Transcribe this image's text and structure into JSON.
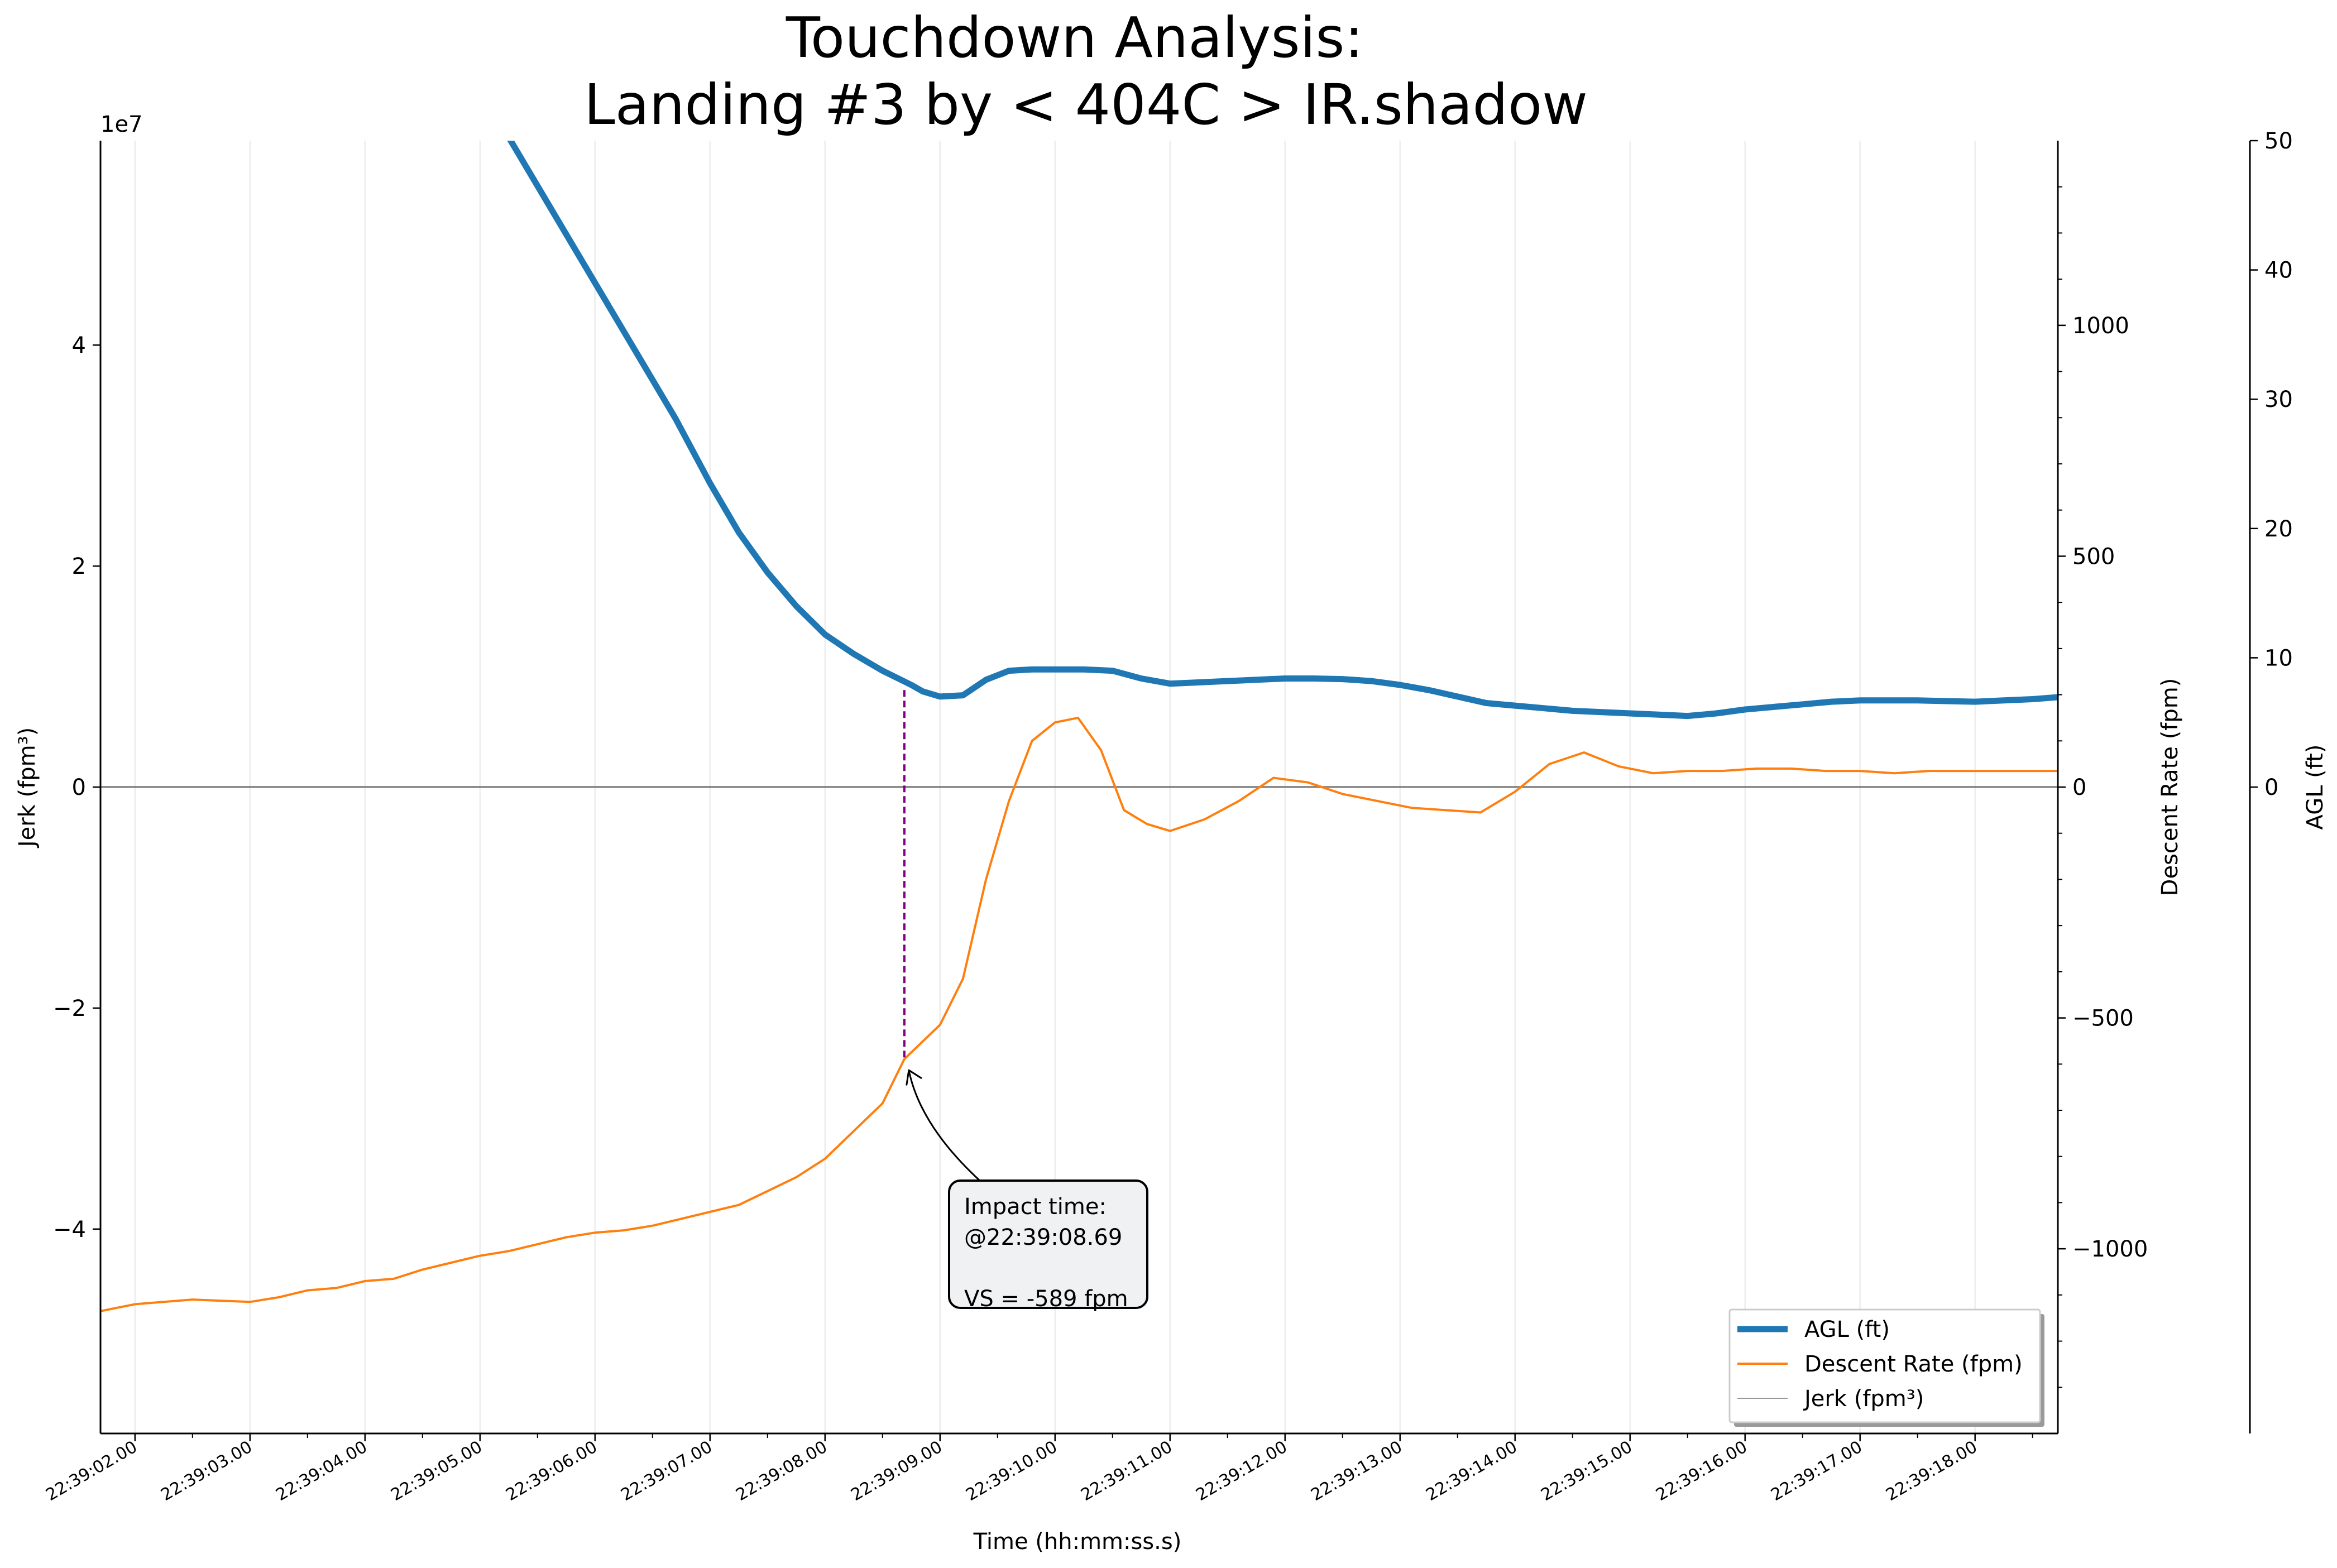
{
  "chart_data": {
    "type": "line",
    "title": [
      "Touchdown Analysis:",
      "Landing #3 by < 404C > IR.shadow"
    ],
    "xlabel": "Time (hh:mm:ss.s)",
    "x_ticks": [
      "22:39:02.00",
      "22:39:03.00",
      "22:39:04.00",
      "22:39:05.00",
      "22:39:06.00",
      "22:39:07.00",
      "22:39:08.00",
      "22:39:09.00",
      "22:39:10.00",
      "22:39:11.00",
      "22:39:12.00",
      "22:39:13.00",
      "22:39:14.00",
      "22:39:15.00",
      "22:39:16.00",
      "22:39:17.00",
      "22:39:18.00"
    ],
    "xlim": [
      1.7,
      18.72
    ],
    "axes": {
      "jerk": {
        "label": "Jerk (fpm³)",
        "offset_label": "1e7",
        "ylim": [
          -58500000,
          58500000
        ],
        "ticks": [
          -40000000,
          -20000000,
          0,
          20000000,
          40000000
        ],
        "tick_labels": [
          "−4",
          "−2",
          "0",
          "2",
          "4"
        ]
      },
      "descent": {
        "label": "Descent Rate (fpm)",
        "ylim": [
          -1400,
          1400
        ],
        "ticks": [
          -1000,
          -500,
          0,
          500,
          1000
        ],
        "tick_labels": [
          "−1000",
          "−500",
          "0",
          "500",
          "1000"
        ]
      },
      "agl": {
        "label": "AGL (ft)",
        "ylim": [
          -50,
          50
        ],
        "ticks": [
          0,
          10,
          20,
          30,
          40,
          50
        ],
        "tick_labels": [
          "0",
          "10",
          "20",
          "30",
          "40",
          "50"
        ]
      }
    },
    "series": [
      {
        "name": "AGL (ft)",
        "axis": "agl",
        "color": "#1f77b4",
        "x": [
          5.2,
          5.5,
          5.8,
          6.1,
          6.4,
          6.7,
          7.0,
          7.25,
          7.5,
          7.75,
          8.0,
          8.25,
          8.5,
          8.75,
          8.85,
          9.0,
          9.2,
          9.4,
          9.6,
          9.8,
          10.0,
          10.25,
          10.5,
          10.75,
          11.0,
          11.5,
          12.0,
          12.25,
          12.5,
          12.75,
          13.0,
          13.25,
          13.5,
          13.75,
          14.0,
          14.25,
          14.5,
          15.0,
          15.25,
          15.5,
          15.75,
          16.0,
          16.25,
          16.5,
          16.75,
          17.0,
          17.25,
          17.5,
          17.75,
          18.0,
          18.25,
          18.5,
          18.72
        ],
        "y": [
          51,
          46.5,
          42,
          37.5,
          33,
          28.5,
          23.5,
          19.7,
          16.6,
          14,
          11.8,
          10.3,
          9.0,
          7.9,
          7.4,
          7.0,
          7.1,
          8.3,
          9.0,
          9.1,
          9.1,
          9.1,
          9.0,
          8.4,
          8.0,
          8.2,
          8.4,
          8.4,
          8.35,
          8.2,
          7.9,
          7.5,
          7.0,
          6.5,
          6.3,
          6.1,
          5.9,
          5.7,
          5.6,
          5.5,
          5.7,
          6.0,
          6.2,
          6.4,
          6.6,
          6.7,
          6.7,
          6.7,
          6.65,
          6.6,
          6.7,
          6.8,
          6.95
        ]
      },
      {
        "name": "Descent Rate (fpm)",
        "axis": "descent",
        "color": "#ff7f0e",
        "x": [
          1.7,
          2.0,
          2.5,
          3.0,
          3.25,
          3.5,
          3.75,
          4.0,
          4.25,
          4.5,
          4.75,
          5.0,
          5.25,
          5.5,
          5.75,
          6.0,
          6.25,
          6.5,
          6.75,
          7.0,
          7.25,
          7.5,
          7.75,
          8.0,
          8.25,
          8.5,
          8.69,
          9.0,
          9.2,
          9.4,
          9.6,
          9.8,
          10.0,
          10.2,
          10.4,
          10.6,
          10.8,
          11.0,
          11.3,
          11.6,
          11.9,
          12.2,
          12.5,
          12.8,
          13.1,
          13.4,
          13.7,
          14.0,
          14.3,
          14.6,
          14.9,
          15.2,
          15.5,
          15.8,
          16.1,
          16.4,
          16.7,
          17.0,
          17.3,
          17.6,
          17.9,
          18.2,
          18.5,
          18.72
        ],
        "y": [
          -1135,
          -1120,
          -1110,
          -1115,
          -1105,
          -1090,
          -1085,
          -1070,
          -1065,
          -1045,
          -1030,
          -1015,
          -1005,
          -990,
          -975,
          -965,
          -960,
          -950,
          -935,
          -920,
          -905,
          -875,
          -845,
          -805,
          -745,
          -685,
          -589,
          -515,
          -415,
          -200,
          -30,
          100,
          140,
          150,
          80,
          -50,
          -80,
          -95,
          -70,
          -30,
          20,
          10,
          -15,
          -30,
          -45,
          -50,
          -55,
          -10,
          50,
          75,
          45,
          30,
          35,
          35,
          40,
          40,
          35,
          35,
          30,
          35,
          35,
          35,
          35,
          35
        ]
      },
      {
        "name": "Jerk (fpm³)",
        "axis": "jerk",
        "color": "#999999",
        "x": [
          1.7,
          1.9,
          2.1,
          2.3,
          2.5,
          2.7,
          2.9,
          3.1,
          3.3,
          3.5,
          3.7,
          3.9,
          4.1,
          4.3,
          4.5,
          4.7,
          4.9,
          5.1,
          5.3,
          5.5,
          5.7,
          5.9,
          6.1,
          6.3,
          6.5,
          6.7,
          6.9,
          7.1,
          7.3,
          7.5,
          7.7,
          7.9,
          8.1,
          8.3,
          8.5,
          8.7,
          8.85,
          9.0,
          9.1,
          9.2,
          9.3,
          9.4,
          9.55,
          9.7,
          9.85,
          10.0,
          10.1,
          10.2,
          10.3,
          10.4,
          10.55,
          10.7,
          10.85,
          11.0,
          11.15,
          11.3,
          11.5,
          11.7,
          11.9,
          12.1,
          12.3,
          12.5,
          12.8,
          13.1,
          13.4,
          13.7,
          14.0,
          14.3,
          14.6,
          14.9,
          15.2,
          15.5,
          15.8,
          16.1,
          16.4,
          16.7,
          17.0,
          17.3,
          17.6,
          17.9,
          18.2,
          18.5,
          18.72
        ],
        "y": [
          0.2,
          0.4,
          -0.3,
          0.1,
          -0.5,
          0.3,
          -0.2,
          0.6,
          -0.4,
          1.0,
          0.2,
          -0.8,
          1.3,
          -0.2,
          -1.5,
          1.3,
          0.8,
          -1.4,
          1.0,
          0.3,
          -0.9,
          0.1,
          0.3,
          -0.4,
          0.6,
          -0.3,
          0.5,
          1.2,
          -0.2,
          0.4,
          0.9,
          0.7,
          -0.3,
          0.5,
          0.2,
          1.2,
          4.0,
          5.0,
          4.6,
          5.6,
          1.0,
          -3.4,
          -3.8,
          -3.2,
          -2.5,
          -6.5,
          -6.8,
          -8.0,
          -1.0,
          1.2,
          1.5,
          2.8,
          2.0,
          1.6,
          1.4,
          1.2,
          0.5,
          -2.0,
          -1.0,
          0.3,
          0.1,
          -0.3,
          0.2,
          -0.1,
          0.3,
          1.5,
          0.3,
          -0.2,
          -0.8,
          -0.5,
          0.0,
          0.4,
          -0.2,
          0.2,
          -0.1,
          0.3,
          0.0,
          0.2,
          -0.1,
          0.1,
          0.0,
          0.1,
          0.0
        ]
      }
    ],
    "vline": {
      "x": 8.69,
      "color": "#800080"
    },
    "annotation": {
      "lines": [
        "Impact time:",
        "@22:39:08.69",
        "",
        "VS = -589 fpm"
      ],
      "point_x": 8.69,
      "point_y": -589
    },
    "legend": {
      "location": "lower-right",
      "entries": [
        "AGL (ft)",
        "Descent Rate (fpm)",
        "Jerk (fpm³)"
      ]
    }
  }
}
